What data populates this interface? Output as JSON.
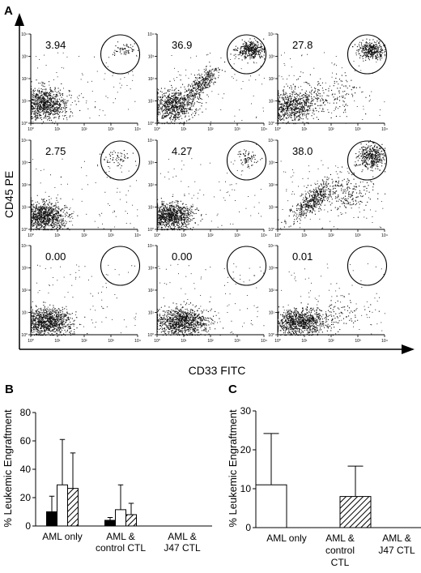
{
  "panel_labels": {
    "a": "A",
    "b": "B",
    "c": "C"
  },
  "panel_a": {
    "xlabel": "CD33 FITC",
    "ylabel": "CD45 PE",
    "tick_labels": [
      "10⁰",
      "10¹",
      "10²",
      "10³",
      "10⁴"
    ]
  },
  "chart_data": [
    {
      "type": "scatter",
      "panel": "A",
      "xlabel": "CD33 FITC",
      "ylabel": "CD45 PE",
      "scale": "log",
      "xlim": [
        1,
        10000
      ],
      "ylim": [
        1,
        10000
      ],
      "grid": false,
      "plots": [
        {
          "gate_percent": "3.94"
        },
        {
          "gate_percent": "36.9"
        },
        {
          "gate_percent": "27.8"
        },
        {
          "gate_percent": "2.75"
        },
        {
          "gate_percent": "4.27"
        },
        {
          "gate_percent": "38.0"
        },
        {
          "gate_percent": "0.00"
        },
        {
          "gate_percent": "0.00"
        },
        {
          "gate_percent": "0.01"
        }
      ]
    },
    {
      "type": "bar",
      "panel": "B",
      "ylabel": "% Leukemic Engraftment",
      "ylim": [
        0,
        80
      ],
      "yticks": [
        "0",
        "20",
        "40",
        "60",
        "80"
      ],
      "categories": [
        "AML only",
        "AML & control CTL",
        "AML & J47 CTL"
      ],
      "category_lines": [
        [
          "AML only"
        ],
        [
          "AML &",
          "control CTL"
        ],
        [
          "AML &",
          "J47 CTL"
        ]
      ],
      "series": [
        {
          "fill": "#000000",
          "values": [
            10,
            4,
            0
          ],
          "errors": [
            11,
            2,
            0
          ]
        },
        {
          "fill": "#ffffff",
          "values": [
            29,
            11.5,
            0
          ],
          "errors": [
            32,
            17.5,
            0
          ]
        },
        {
          "fill": "hatch",
          "values": [
            26.5,
            8,
            0
          ],
          "errors": [
            25,
            8,
            0
          ]
        }
      ]
    },
    {
      "type": "bar",
      "panel": "C",
      "ylabel": "% Leukemic Engraftment",
      "ylim": [
        0,
        30
      ],
      "yticks": [
        "0",
        "10",
        "20",
        "30"
      ],
      "categories": [
        "AML only",
        "AML & control CTL",
        "AML & J47 CTL"
      ],
      "category_lines": [
        [
          "AML only"
        ],
        [
          "AML &",
          "control",
          "CTL"
        ],
        [
          "AML &",
          "J47 CTL"
        ]
      ],
      "series": [
        {
          "fill": "#ffffff",
          "values": [
            11,
            0,
            0
          ],
          "errors": [
            13.2,
            0,
            0
          ]
        },
        {
          "fill": "hatch",
          "values": [
            0,
            8,
            0
          ],
          "errors": [
            0,
            7.8,
            0
          ]
        }
      ]
    }
  ]
}
